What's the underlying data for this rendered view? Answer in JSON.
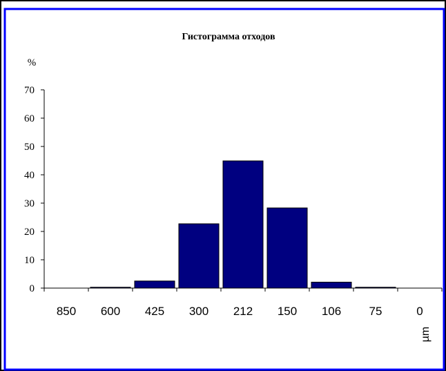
{
  "colors": {
    "bar_fill": "#000080",
    "bar_stroke": "#000000",
    "frame_accent": "#0000ff",
    "axis": "#000000",
    "background": "#ffffff"
  },
  "chart_data": {
    "type": "bar",
    "title": "Гистограмма отходов",
    "ylabel": "%",
    "xlabel": "µm",
    "categories": [
      "850",
      "600",
      "425",
      "300",
      "212",
      "150",
      "106",
      "75",
      "0"
    ],
    "values": [
      0,
      0.3,
      2.5,
      22.7,
      44.9,
      28.3,
      2.1,
      0.3,
      0
    ],
    "ylim": [
      0,
      70
    ],
    "yticks": [
      0,
      10,
      20,
      30,
      40,
      50,
      60,
      70
    ],
    "grid": false,
    "legend": "none"
  }
}
